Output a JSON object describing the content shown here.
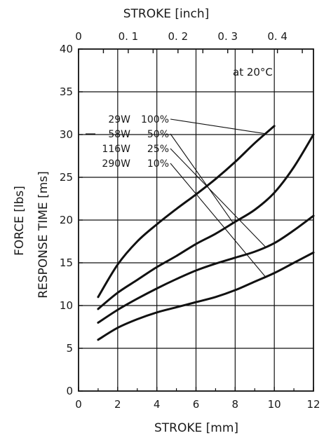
{
  "chart_data": {
    "type": "line",
    "title": "",
    "xlabel": "STROKE [mm]",
    "x2label": "STROKE [inch]",
    "ylabel_outer": "FORCE [lbs]",
    "ylabel_inner": "RESPONSE TIME [ms]",
    "annotation": "at 20°C",
    "xlim": [
      0,
      12
    ],
    "ylim": [
      0,
      40
    ],
    "x_ticks": [
      "0",
      "2",
      "4",
      "6",
      "8",
      "10",
      "12"
    ],
    "y_ticks": [
      "0",
      "5",
      "10",
      "15",
      "20",
      "25",
      "30",
      "35",
      "40"
    ],
    "x2_ticks": [
      {
        "inch": 0,
        "label": "0"
      },
      {
        "inch": 0.1,
        "label": "0. 1"
      },
      {
        "inch": 0.2,
        "label": "0. 2"
      },
      {
        "inch": 0.3,
        "label": "0. 3"
      },
      {
        "inch": 0.4,
        "label": "0. 4"
      }
    ],
    "grid": true,
    "line_color": "#111111",
    "series": [
      {
        "name": "29W 100%",
        "watt": "29W",
        "duty": "100%",
        "x": [
          1,
          2,
          3,
          4,
          5,
          6,
          7,
          8,
          9,
          10
        ],
        "y": [
          11.0,
          14.8,
          17.5,
          19.5,
          21.3,
          23.0,
          24.8,
          26.8,
          29.0,
          31.0
        ]
      },
      {
        "name": "58W 50%",
        "watt": "58W",
        "duty": "50%",
        "x": [
          1,
          2,
          3,
          4,
          5,
          6,
          7,
          8,
          9,
          10,
          11,
          12
        ],
        "y": [
          9.6,
          11.5,
          13.0,
          14.5,
          15.8,
          17.2,
          18.4,
          19.8,
          21.2,
          23.2,
          26.2,
          30.0
        ]
      },
      {
        "name": "116W 25%",
        "watt": "116W",
        "duty": "25%",
        "x": [
          1,
          2,
          3,
          4,
          5,
          6,
          7,
          8,
          9,
          10,
          11,
          12
        ],
        "y": [
          8.0,
          9.5,
          10.8,
          12.0,
          13.1,
          14.1,
          14.9,
          15.6,
          16.3,
          17.3,
          18.8,
          20.5
        ]
      },
      {
        "name": "290W 10%",
        "watt": "290W",
        "duty": "10%",
        "x": [
          1,
          2,
          3,
          4,
          5,
          6,
          7,
          8,
          9,
          10,
          11,
          12
        ],
        "y": [
          6.0,
          7.4,
          8.4,
          9.2,
          9.8,
          10.4,
          11.0,
          11.8,
          12.8,
          13.8,
          15.0,
          16.2
        ]
      }
    ]
  }
}
